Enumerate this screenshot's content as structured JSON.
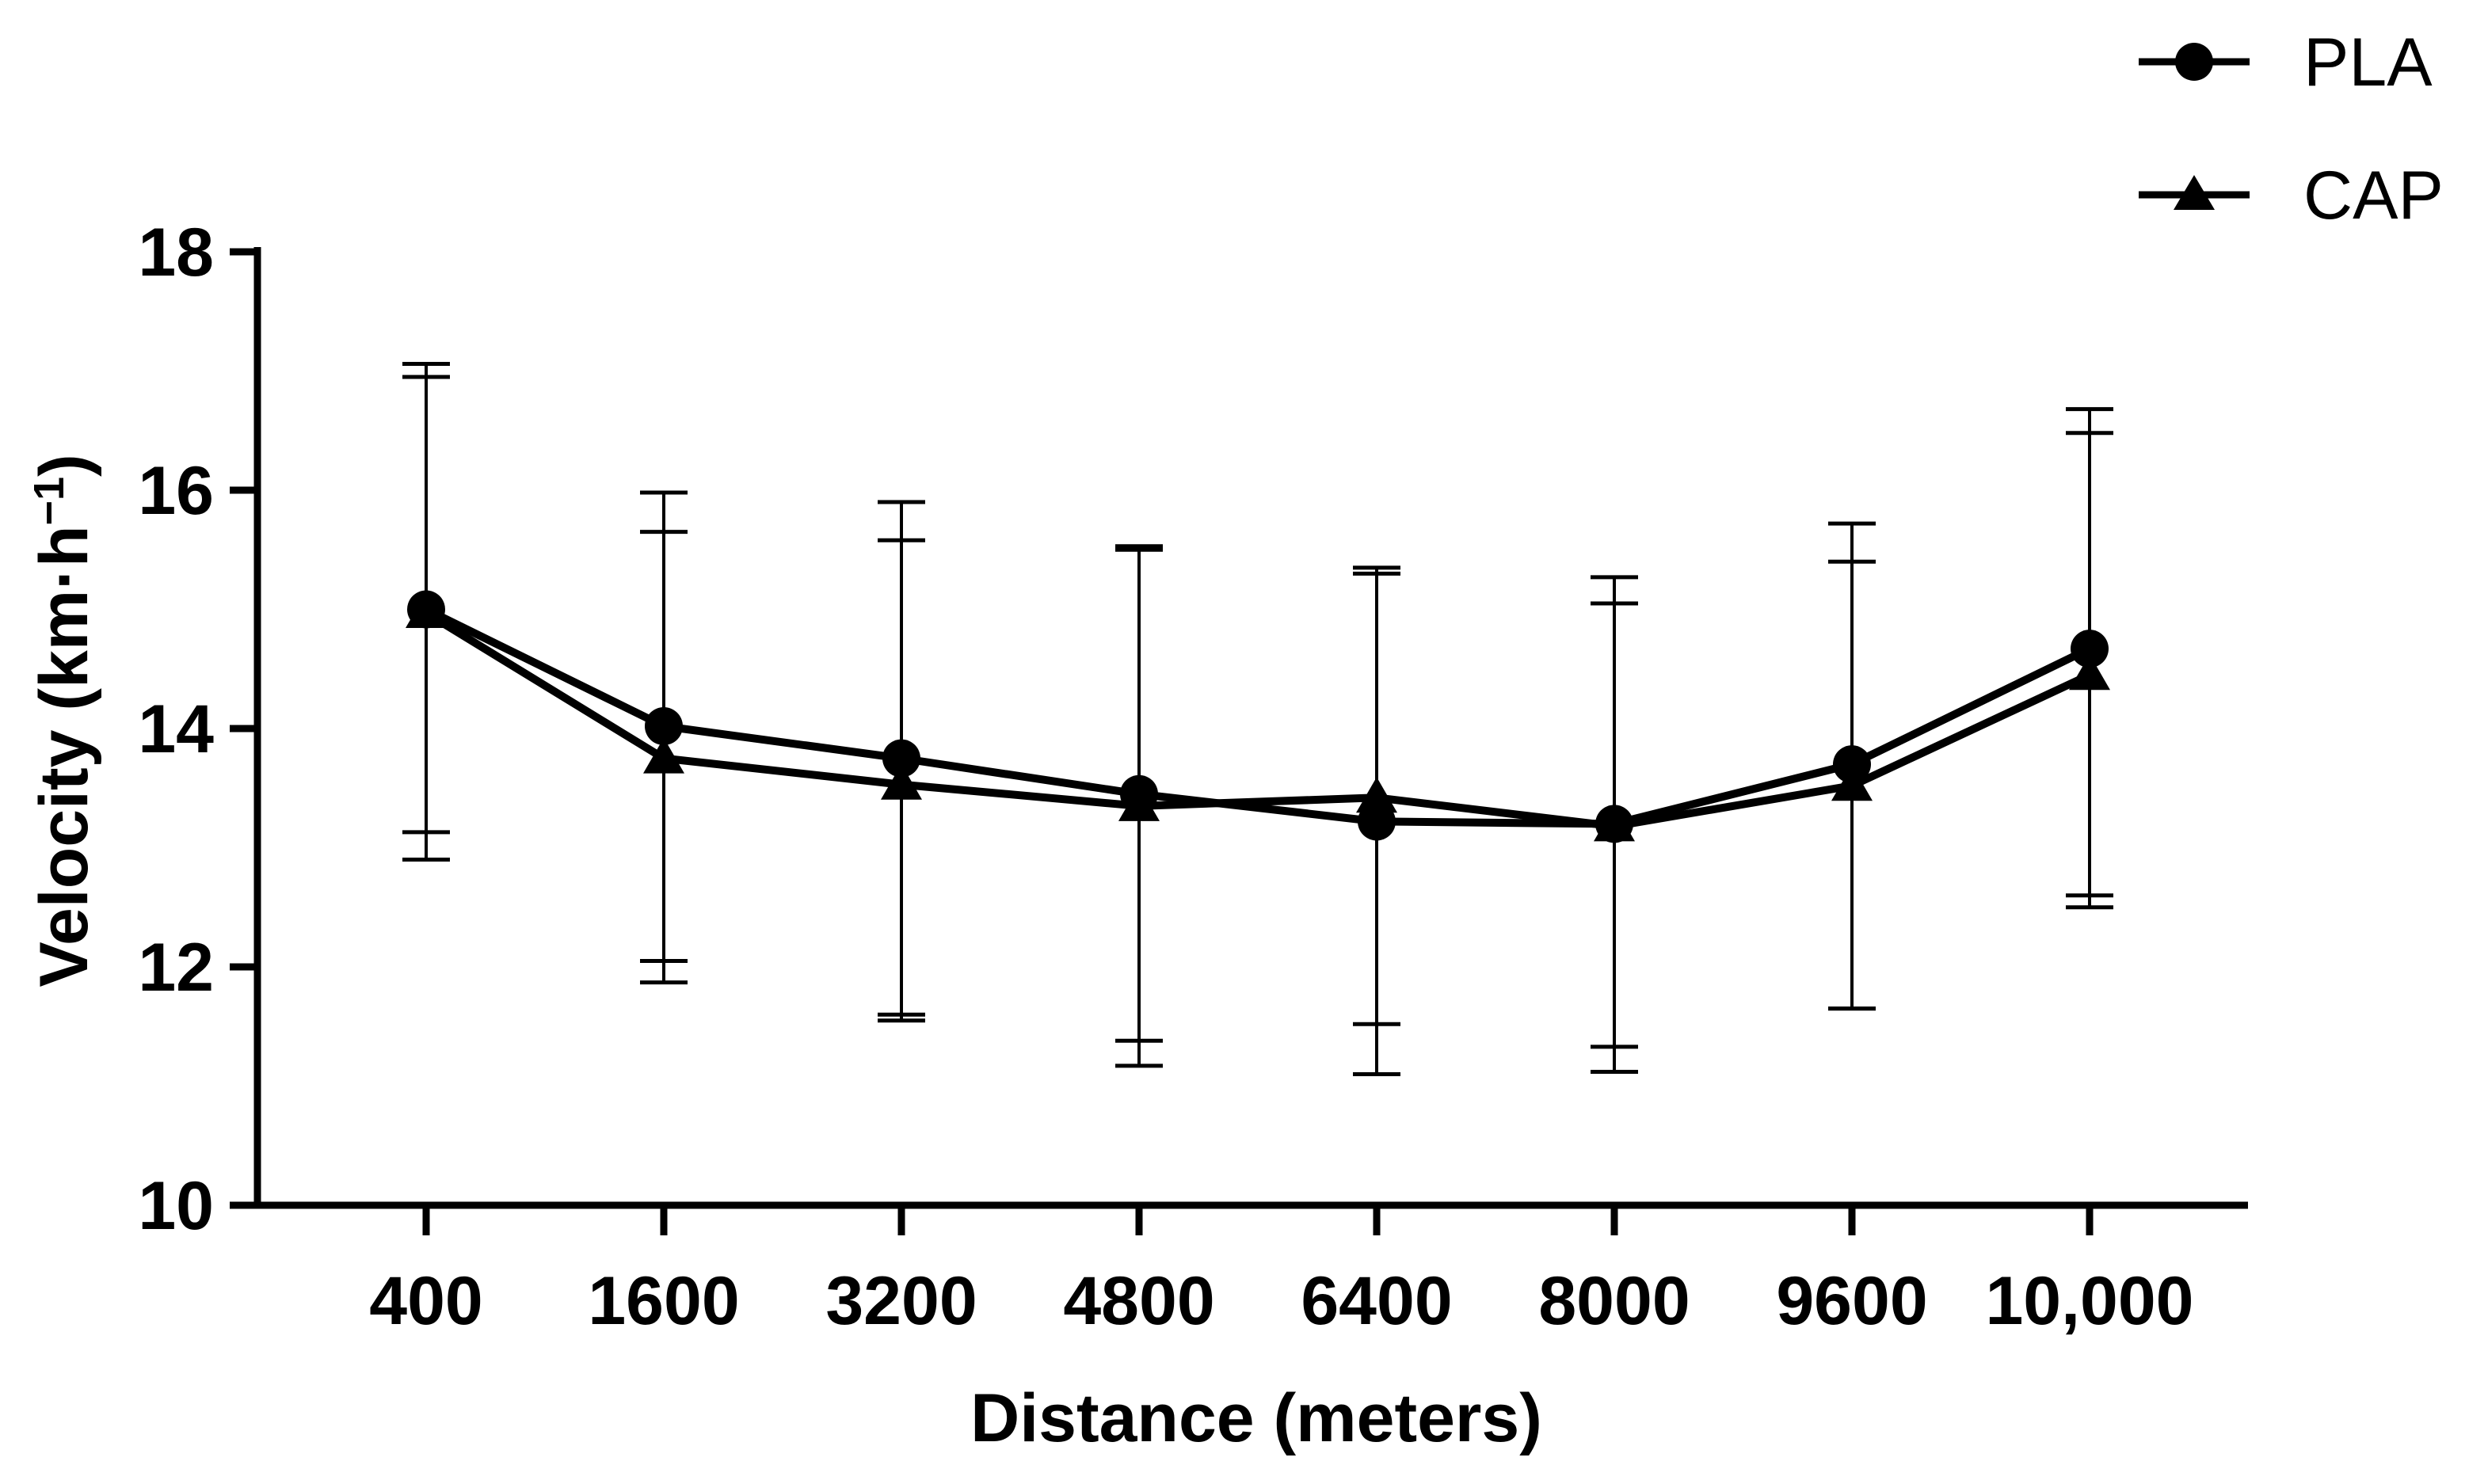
{
  "chart_data": {
    "type": "line",
    "title": "",
    "xlabel": "Distance (meters)",
    "ylabel_main": "Velocity (km·h",
    "ylabel_sup": "−1",
    "ylabel_close": ")",
    "ylim": [
      10,
      18
    ],
    "yticks": [
      10,
      12,
      14,
      16,
      18
    ],
    "categories": [
      "400",
      "1600",
      "3200",
      "4800",
      "6400",
      "8000",
      "9600",
      "10,000"
    ],
    "legend_position": "top-right",
    "series": [
      {
        "name": "PLA",
        "marker": "circle",
        "values": [
          15.0,
          14.02,
          13.75,
          13.45,
          13.22,
          13.2,
          13.7,
          14.67
        ],
        "error_lower": [
          12.9,
          11.87,
          11.6,
          11.38,
          11.1,
          11.12,
          11.65,
          12.6
        ],
        "error_upper": [
          17.06,
          15.98,
          15.9,
          15.53,
          15.35,
          15.27,
          15.72,
          16.68
        ]
      },
      {
        "name": "CAP",
        "marker": "triangle",
        "values": [
          14.97,
          13.75,
          13.53,
          13.35,
          13.42,
          13.18,
          13.52,
          14.45
        ],
        "error_lower": [
          13.13,
          12.05,
          11.55,
          11.17,
          11.52,
          11.33,
          11.65,
          12.5
        ],
        "error_upper": [
          16.95,
          15.65,
          15.58,
          15.5,
          15.3,
          15.05,
          15.4,
          16.48
        ]
      }
    ],
    "grid": false
  }
}
